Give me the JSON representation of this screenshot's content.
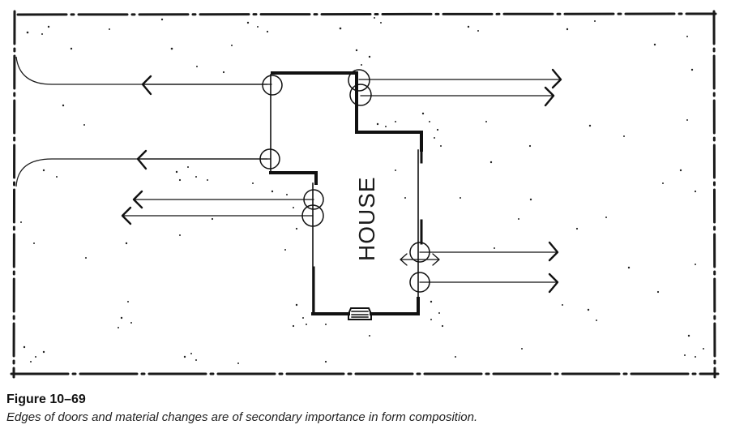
{
  "diagram": {
    "house_label": "HOUSE"
  },
  "caption": {
    "figure_number": "Figure 10–69",
    "text": "Edges of doors and material changes are of secondary importance in form composition."
  }
}
